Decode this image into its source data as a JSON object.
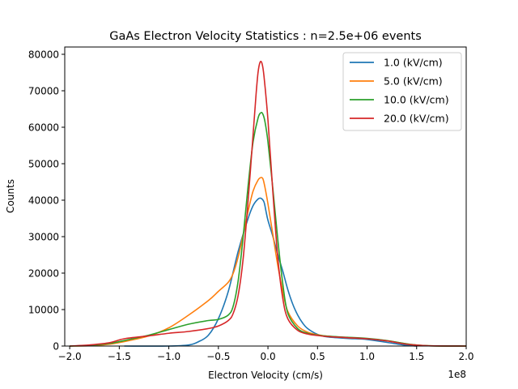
{
  "chart_data": {
    "type": "line",
    "title": "GaAs Electron Velocity Statistics : n=2.5e+06 events",
    "xlabel": "Electron Velocity (cm/s)",
    "ylabel": "Counts",
    "x_offset_label": "1e8",
    "xlim": [
      -2.05,
      2.0
    ],
    "ylim": [
      0,
      82000
    ],
    "x_ticks": [
      -2.0,
      -1.5,
      -1.0,
      -0.5,
      0.0,
      0.5,
      1.0,
      1.5,
      2.0
    ],
    "x_tick_labels": [
      "−2.0",
      "−1.5",
      "−1.0",
      "−0.5",
      "0.0",
      "0.5",
      "1.0",
      "1.5",
      "2.0"
    ],
    "y_ticks": [
      0,
      10000,
      20000,
      30000,
      40000,
      50000,
      60000,
      70000,
      80000
    ],
    "y_tick_labels": [
      "0",
      "10000",
      "20000",
      "30000",
      "40000",
      "50000",
      "60000",
      "70000",
      "80000"
    ],
    "legend_position": "top-right",
    "grid": false,
    "series": [
      {
        "name": "1.0 (kV/cm)",
        "color": "#1f77b4",
        "x": [
          -1.45,
          -1.0,
          -0.8,
          -0.7,
          -0.6,
          -0.5,
          -0.4,
          -0.3,
          -0.2,
          -0.15,
          -0.1,
          -0.07,
          -0.04,
          -0.02,
          0.0,
          0.05,
          0.1,
          0.15,
          0.2,
          0.25,
          0.3,
          0.35,
          0.4,
          0.5,
          0.6,
          0.8,
          1.0,
          1.2,
          1.4,
          1.5
        ],
        "y": [
          0,
          0,
          300,
          1200,
          3000,
          7500,
          15000,
          26000,
          35000,
          38500,
          40300,
          40500,
          39500,
          37000,
          34500,
          30000,
          25000,
          20500,
          15500,
          11500,
          8500,
          6300,
          4800,
          3200,
          2500,
          2100,
          1800,
          1000,
          200,
          0
        ]
      },
      {
        "name": "5.0 (kV/cm)",
        "color": "#ff7f0e",
        "x": [
          -2.0,
          -1.8,
          -1.6,
          -1.4,
          -1.2,
          -1.0,
          -0.8,
          -0.6,
          -0.5,
          -0.4,
          -0.35,
          -0.3,
          -0.25,
          -0.2,
          -0.15,
          -0.1,
          -0.07,
          -0.05,
          -0.03,
          0.0,
          0.05,
          0.1,
          0.15,
          0.2,
          0.3,
          0.4,
          0.5,
          0.6,
          0.8,
          1.0,
          1.2,
          1.4,
          1.6,
          2.0
        ],
        "y": [
          0,
          100,
          500,
          1500,
          2800,
          5000,
          8500,
          12500,
          15000,
          17500,
          20000,
          24500,
          30500,
          37000,
          42500,
          45500,
          46200,
          45800,
          43500,
          39000,
          30500,
          22000,
          15000,
          9500,
          5500,
          3800,
          3100,
          2700,
          2300,
          2000,
          1500,
          600,
          100,
          0
        ]
      },
      {
        "name": "10.0 (kV/cm)",
        "color": "#2ca02c",
        "x": [
          -2.0,
          -1.8,
          -1.6,
          -1.4,
          -1.2,
          -1.0,
          -0.8,
          -0.6,
          -0.5,
          -0.4,
          -0.35,
          -0.3,
          -0.25,
          -0.2,
          -0.15,
          -0.1,
          -0.07,
          -0.05,
          -0.03,
          0.0,
          0.05,
          0.1,
          0.15,
          0.2,
          0.3,
          0.4,
          0.5,
          0.6,
          0.8,
          1.0,
          1.2,
          1.4,
          1.6,
          2.0
        ],
        "y": [
          0,
          200,
          700,
          1800,
          3000,
          4500,
          6000,
          7000,
          7300,
          8500,
          11000,
          18000,
          30000,
          44000,
          56000,
          62500,
          64000,
          63500,
          61500,
          56000,
          43000,
          29000,
          17000,
          9000,
          4800,
          3500,
          3000,
          2700,
          2400,
          2100,
          1500,
          600,
          100,
          0
        ]
      },
      {
        "name": "20.0 (kV/cm)",
        "color": "#d62728",
        "x": [
          -2.0,
          -1.8,
          -1.6,
          -1.45,
          -1.2,
          -1.0,
          -0.8,
          -0.6,
          -0.5,
          -0.4,
          -0.35,
          -0.3,
          -0.25,
          -0.2,
          -0.15,
          -0.12,
          -0.1,
          -0.08,
          -0.06,
          -0.04,
          0.0,
          0.05,
          0.1,
          0.15,
          0.2,
          0.3,
          0.4,
          0.5,
          0.6,
          0.8,
          1.0,
          1.2,
          1.4,
          1.6,
          2.0
        ],
        "y": [
          0,
          300,
          900,
          2000,
          2800,
          3500,
          4000,
          4800,
          5500,
          7000,
          9000,
          14000,
          24000,
          40000,
          58000,
          69000,
          75000,
          77800,
          77500,
          74000,
          62000,
          42000,
          24000,
          13000,
          7500,
          4300,
          3300,
          2900,
          2600,
          2300,
          2000,
          1400,
          500,
          100,
          0
        ]
      }
    ]
  }
}
